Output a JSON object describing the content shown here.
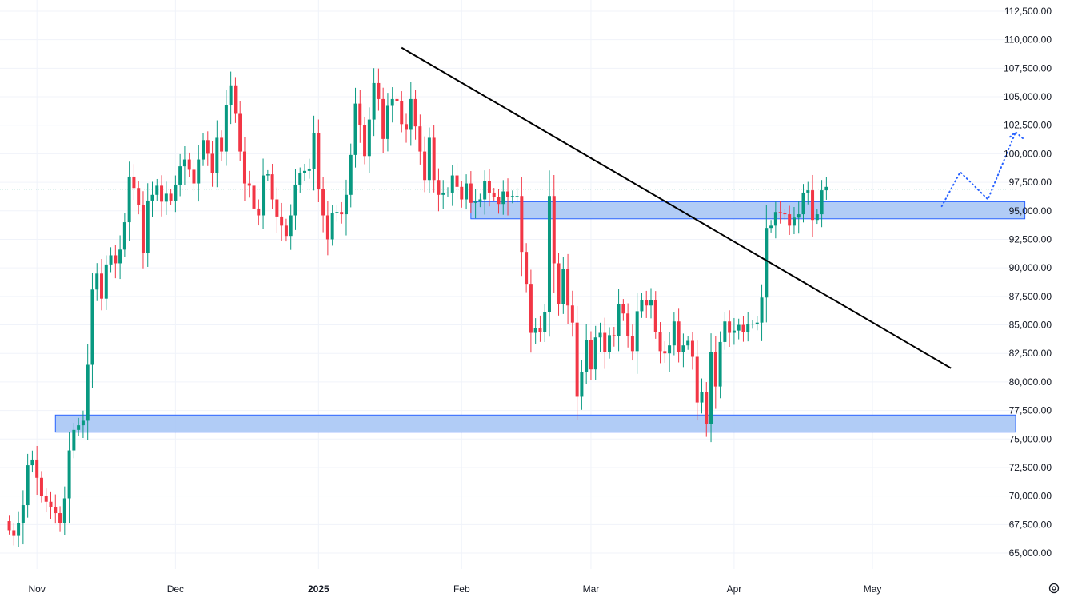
{
  "chart_data": {
    "type": "candlestick",
    "title": "",
    "xlabel": "",
    "ylabel": "",
    "ylim": [
      63000,
      113500
    ],
    "xlim": [
      "2024-10-24",
      "2025-06-04"
    ],
    "grid": true,
    "y_axis_side": "right",
    "colors": {
      "up": "#089981",
      "down": "#f23645",
      "zone_fill": "#a9c6f5",
      "zone_stroke": "#2962ff",
      "trendline": "#000000",
      "projection": "#2962ff",
      "price_line": "#089981",
      "grid": "#f0f3fa"
    },
    "y_ticks": [
      {
        "value": 65000,
        "label": "65,000.00"
      },
      {
        "value": 67500,
        "label": "67,500.00"
      },
      {
        "value": 70000,
        "label": "70,000.00"
      },
      {
        "value": 72500,
        "label": "72,500.00"
      },
      {
        "value": 75000,
        "label": "75,000.00"
      },
      {
        "value": 77500,
        "label": "77,500.00"
      },
      {
        "value": 80000,
        "label": "80,000.00"
      },
      {
        "value": 82500,
        "label": "82,500.00"
      },
      {
        "value": 85000,
        "label": "85,000.00"
      },
      {
        "value": 87500,
        "label": "87,500.00"
      },
      {
        "value": 90000,
        "label": "90,000.00"
      },
      {
        "value": 92500,
        "label": "92,500.00"
      },
      {
        "value": 95000,
        "label": "95,000.00"
      },
      {
        "value": 97500,
        "label": "97,500.00"
      },
      {
        "value": 100000,
        "label": "100,000.00"
      },
      {
        "value": 102500,
        "label": "102,500.00"
      },
      {
        "value": 105000,
        "label": "105,000.00"
      },
      {
        "value": 107500,
        "label": "107,500.00"
      },
      {
        "value": 110000,
        "label": "110,000.00"
      },
      {
        "value": 112500,
        "label": "112,500.00"
      }
    ],
    "x_ticks": [
      {
        "date": "2024-11-01",
        "label": "Nov",
        "bold": false
      },
      {
        "date": "2024-12-01",
        "label": "Dec",
        "bold": false
      },
      {
        "date": "2025-01-01",
        "label": "2025",
        "bold": true
      },
      {
        "date": "2025-02-01",
        "label": "Feb",
        "bold": false
      },
      {
        "date": "2025-03-01",
        "label": "Mar",
        "bold": false
      },
      {
        "date": "2025-04-01",
        "label": "Apr",
        "bold": false
      },
      {
        "date": "2025-05-01",
        "label": "May",
        "bold": false
      }
    ],
    "start_date": "2024-10-26",
    "closes": [
      67000,
      66500,
      67600,
      69200,
      72700,
      73200,
      71600,
      70000,
      69500,
      69000,
      68500,
      67600,
      69800,
      74000,
      75800,
      76200,
      76600,
      81500,
      88100,
      89500,
      87300,
      90300,
      91100,
      90400,
      91600,
      94000,
      98000,
      97000,
      95500,
      91300,
      95900,
      96400,
      97200,
      95800,
      96500,
      95900,
      97300,
      98900,
      99500,
      98600,
      97400,
      99500,
      101200,
      100000,
      98300,
      101400,
      100200,
      104300,
      106000,
      103500,
      100200,
      97400,
      97200,
      95200,
      94600,
      98100,
      98200,
      96000,
      94500,
      93700,
      92800,
      94600,
      97300,
      98300,
      98500,
      98700,
      101800,
      96900,
      94600,
      92500,
      94800,
      94900,
      94700,
      96400,
      99900,
      104400,
      102500,
      99800,
      103000,
      106200,
      104800,
      101300,
      104200,
      104800,
      104600,
      102600,
      102100,
      104800,
      102400,
      100200,
      97700,
      101400,
      97700,
      96400,
      96600,
      96600,
      98100,
      97100,
      96000,
      97400,
      95700,
      95800,
      96000,
      97600,
      96600,
      96200,
      95600,
      96700,
      96200,
      96300,
      96300,
      91400,
      88600,
      84300,
      84700,
      84400,
      86100,
      96300,
      90400,
      86800,
      89900,
      86700,
      85200,
      78700,
      80900,
      83700,
      81100,
      83900,
      84300,
      82600,
      84100,
      84000,
      86800,
      86000,
      84000,
      82700,
      86200,
      87200,
      86700,
      87200,
      84400,
      82700,
      82500,
      83200,
      85300,
      82600,
      83200,
      83600,
      82200,
      78200,
      79100,
      76300,
      82600,
      79600,
      83500,
      85300,
      84300,
      84500,
      85000,
      84400,
      85100,
      85100,
      85200,
      87400,
      93500,
      93700,
      94900,
      94800,
      94700,
      93700,
      94400,
      94700,
      96600,
      96800,
      94200,
      94700,
      96800,
      97100
    ],
    "zones": [
      {
        "from": "2024-11-05",
        "to": "2025-06-01",
        "low": 75600,
        "high": 77100
      },
      {
        "from": "2025-02-03",
        "to": "2025-06-03",
        "low": 94300,
        "high": 95800
      }
    ],
    "trendline": [
      {
        "date": "2025-01-19",
        "price": 109300
      },
      {
        "date": "2025-05-18",
        "price": 81200
      }
    ],
    "projection": [
      {
        "date": "2025-05-16",
        "price": 95400
      },
      {
        "date": "2025-05-20",
        "price": 98400
      },
      {
        "date": "2025-05-26",
        "price": 96000
      },
      {
        "date": "2025-06-01",
        "price": 101900
      },
      {
        "date": "2025-06-03",
        "price": 101200
      }
    ],
    "current_price": 96900
  }
}
